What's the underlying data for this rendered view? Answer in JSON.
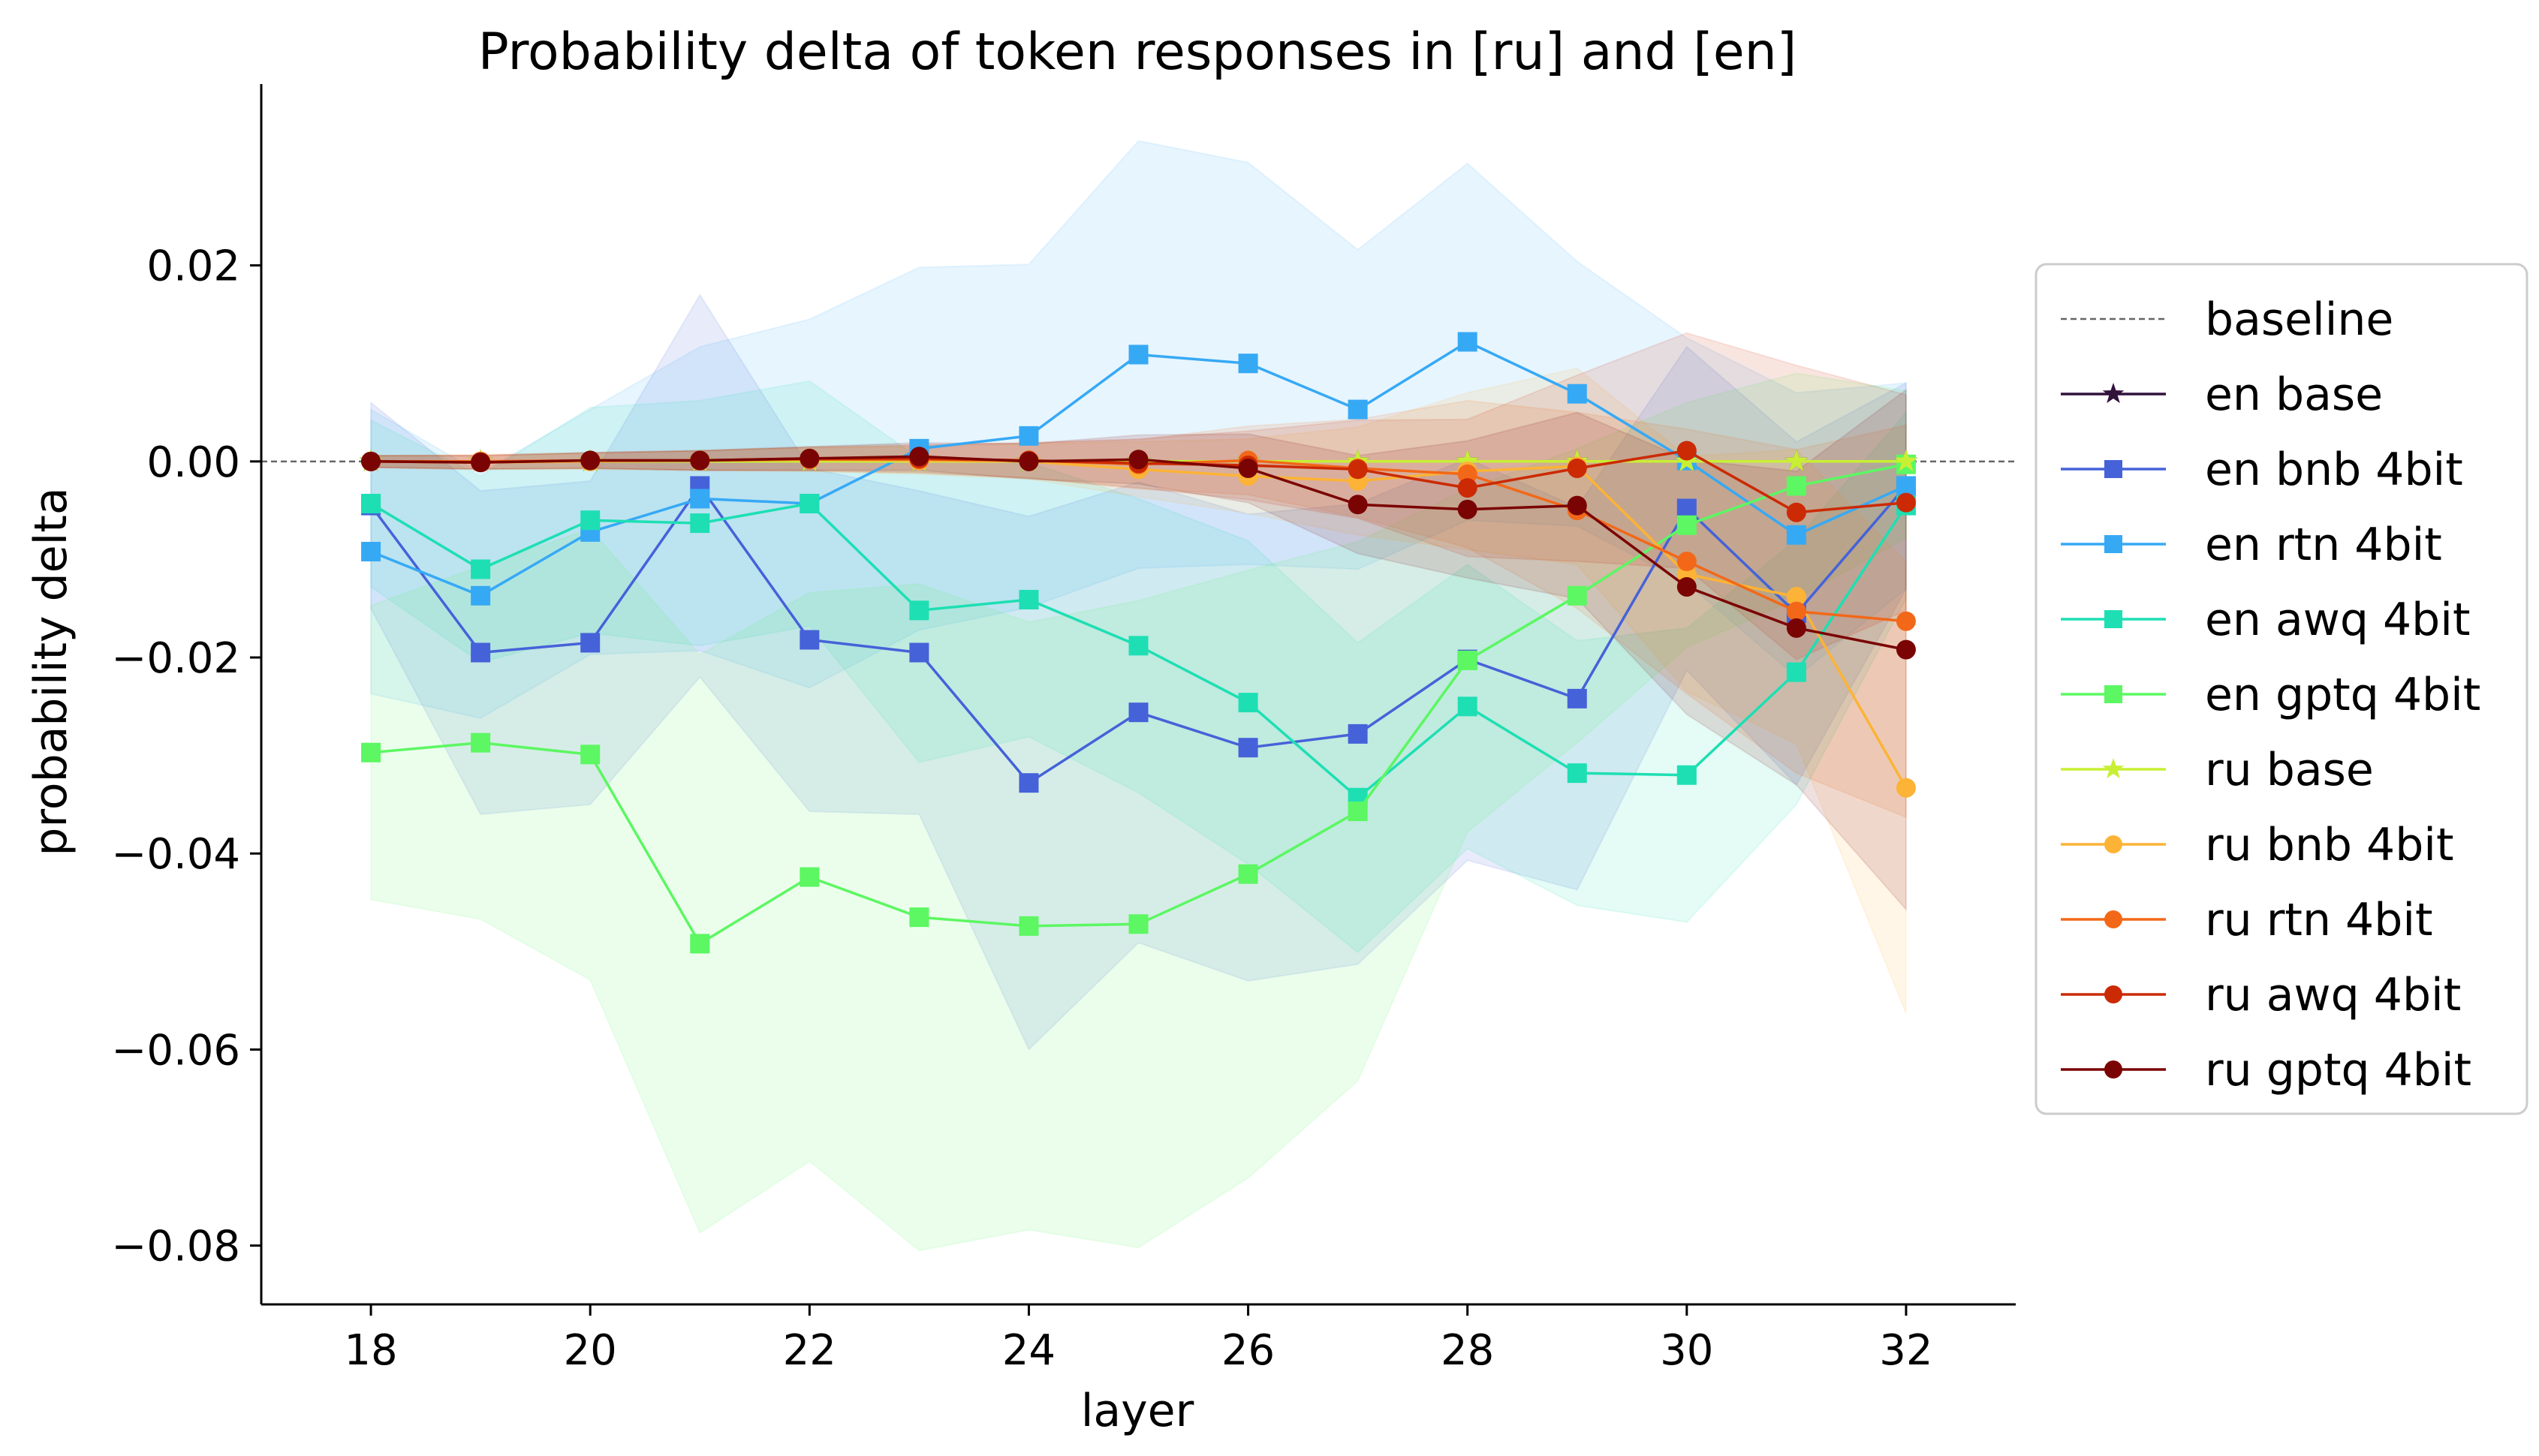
{
  "chart_data": {
    "type": "line",
    "title": "Probability delta of token responses in [ru] and [en]",
    "xlabel": "layer",
    "ylabel": "probability delta",
    "xlim": [
      17,
      33
    ],
    "ylim": [
      -0.086,
      0.0385
    ],
    "xticks": [
      18,
      20,
      22,
      24,
      26,
      28,
      30,
      32
    ],
    "xtick_labels": [
      "18",
      "20",
      "22",
      "24",
      "26",
      "28",
      "30",
      "32"
    ],
    "yticks": [
      0.02,
      0.0,
      -0.02,
      -0.04,
      -0.06,
      -0.08
    ],
    "ytick_labels": [
      "0.02",
      "0.00",
      "−0.02",
      "−0.04",
      "−0.06",
      "−0.08"
    ],
    "grid": false,
    "legend_position": "outside-right",
    "baseline": {
      "name": "baseline",
      "y": 0,
      "color": "#666666"
    },
    "x": [
      18,
      19,
      20,
      21,
      22,
      23,
      24,
      25,
      26,
      27,
      28,
      29,
      30,
      31,
      32
    ],
    "series": [
      {
        "name": "en base",
        "color": "#30123b",
        "marker": "star",
        "values": [
          0,
          0,
          0,
          0,
          0,
          0,
          0,
          0,
          0,
          0,
          0,
          0,
          0,
          0,
          0
        ],
        "band": 0
      },
      {
        "name": "en bnb 4bit",
        "color": "#4562d9",
        "marker": "square",
        "values": [
          -0.0045,
          -0.0195,
          -0.0185,
          -0.0025,
          -0.0182,
          -0.0195,
          -0.0328,
          -0.0256,
          -0.0292,
          -0.0278,
          -0.0202,
          -0.0242,
          -0.0048,
          -0.0155,
          -0.0025
        ],
        "band": [
          0.0105,
          0.0165,
          0.0165,
          0.0195,
          0.0175,
          0.0165,
          0.0272,
          0.0235,
          0.0238,
          0.0235,
          0.0205,
          0.0195,
          0.0165,
          0.0175,
          0.0105
        ]
      },
      {
        "name": "en rtn 4bit",
        "color": "#36a9f5",
        "marker": "square",
        "values": [
          -0.0092,
          -0.0137,
          -0.0072,
          -0.0038,
          -0.0043,
          0.0013,
          0.0026,
          0.0109,
          0.01,
          0.0053,
          0.0122,
          0.0069,
          0.0001,
          -0.0075,
          -0.0025
        ],
        "band": [
          0.0145,
          0.0125,
          0.0125,
          0.0155,
          0.0188,
          0.0185,
          0.0175,
          0.0218,
          0.0205,
          0.0163,
          0.0182,
          0.0135,
          0.0125,
          0.0145,
          0.0105
        ]
      },
      {
        "name": "en awq 4bit",
        "color": "#1ddfb3",
        "marker": "square",
        "values": [
          -0.0043,
          -0.011,
          -0.006,
          -0.0063,
          -0.0043,
          -0.0152,
          -0.0141,
          -0.0188,
          -0.0246,
          -0.0343,
          -0.025,
          -0.0318,
          -0.032,
          -0.0215,
          -0.0045
        ],
        "band": [
          0.0085,
          0.0095,
          0.0115,
          0.0125,
          0.0125,
          0.0155,
          0.014,
          0.015,
          0.0165,
          0.0158,
          0.0145,
          0.0135,
          0.015,
          0.0135,
          0.0095
        ]
      },
      {
        "name": "en gptq 4bit",
        "color": "#5cf762",
        "marker": "square",
        "values": [
          -0.0297,
          -0.0287,
          -0.0299,
          -0.0492,
          -0.0424,
          -0.0465,
          -0.0474,
          -0.0472,
          -0.0421,
          -0.0357,
          -0.0203,
          -0.0137,
          -0.0065,
          -0.0025,
          -0.0003
        ],
        "band": [
          0.015,
          0.018,
          0.023,
          0.0295,
          0.029,
          0.034,
          0.031,
          0.033,
          0.031,
          0.0275,
          0.0175,
          0.015,
          0.0125,
          0.0115,
          0.0075
        ]
      },
      {
        "name": "ru base",
        "color": "#c8ef34",
        "marker": "star",
        "values": [
          0,
          0,
          0,
          0,
          0,
          0,
          0,
          0,
          0,
          0,
          0,
          0,
          0,
          0,
          0
        ],
        "band": 0
      },
      {
        "name": "ru bnb 4bit",
        "color": "#fcb336",
        "marker": "circle",
        "values": [
          0.0,
          -0.0001,
          0.0,
          0.0001,
          0.0002,
          0.0001,
          0.0,
          -0.0008,
          -0.0015,
          -0.002,
          -0.001,
          -0.0005,
          -0.0115,
          -0.0138,
          -0.0333
        ],
        "band": [
          0.0006,
          0.0007,
          0.0008,
          0.001,
          0.0012,
          0.0014,
          0.0018,
          0.0028,
          0.0038,
          0.0055,
          0.008,
          0.01,
          0.012,
          0.015,
          0.023
        ]
      },
      {
        "name": "ru rtn 4bit",
        "color": "#f26818",
        "marker": "circle",
        "values": [
          0.0,
          0.0,
          0.0001,
          0.0001,
          0.0002,
          0.0002,
          0.0001,
          -0.0003,
          0.0001,
          -0.0007,
          -0.0013,
          -0.005,
          -0.0102,
          -0.0153,
          -0.0163
        ],
        "band": [
          0.0006,
          0.0007,
          0.0008,
          0.001,
          0.0012,
          0.0014,
          0.0018,
          0.0025,
          0.0035,
          0.005,
          0.0075,
          0.01,
          0.0135,
          0.0165,
          0.02
        ]
      },
      {
        "name": "ru awq 4bit",
        "color": "#cb2a04",
        "marker": "circle",
        "values": [
          0.0,
          -0.0001,
          0.0001,
          0.0001,
          0.0003,
          0.0003,
          0.0001,
          -0.0002,
          -0.0004,
          -0.0008,
          -0.0027,
          -0.0007,
          0.0011,
          -0.0052,
          -0.0042
        ],
        "band": [
          0.0006,
          0.0007,
          0.0008,
          0.001,
          0.0012,
          0.0014,
          0.0018,
          0.0025,
          0.0035,
          0.005,
          0.007,
          0.0095,
          0.012,
          0.015,
          0.011
        ]
      },
      {
        "name": "ru gptq 4bit",
        "color": "#7a0403",
        "marker": "circle",
        "values": [
          0.0,
          -0.0001,
          0.0001,
          0.0001,
          0.0003,
          0.0005,
          0.0,
          0.0002,
          -0.0007,
          -0.0044,
          -0.0049,
          -0.0045,
          -0.0128,
          -0.017,
          -0.0192
        ],
        "band": [
          0.0006,
          0.0007,
          0.0008,
          0.001,
          0.0012,
          0.0014,
          0.0018,
          0.0025,
          0.0035,
          0.005,
          0.007,
          0.0095,
          0.013,
          0.016,
          0.0265
        ]
      }
    ]
  }
}
